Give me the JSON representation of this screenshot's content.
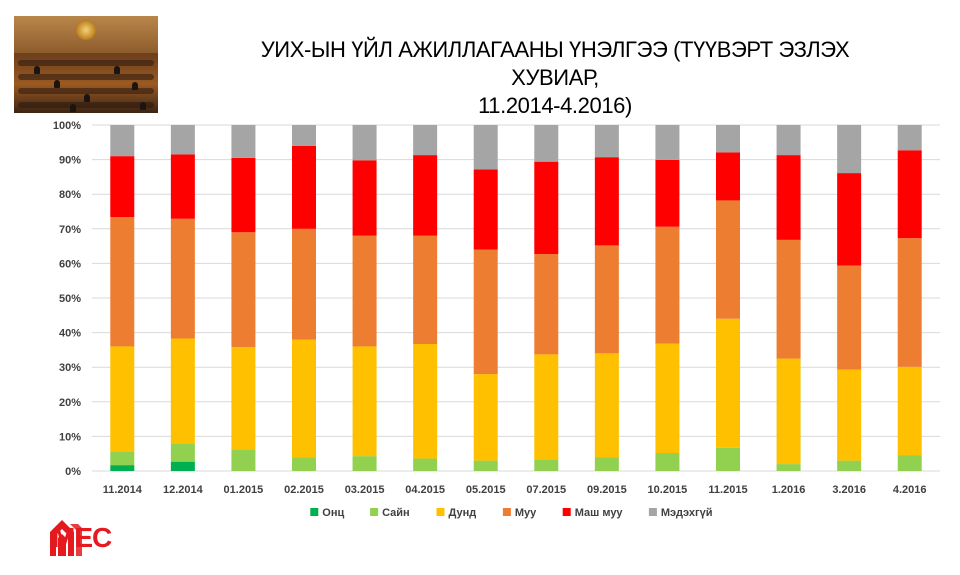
{
  "title": {
    "line1": "УИХ-ЫН ҮЙЛ АЖИЛЛАГААНЫ ҮНЭЛГЭЭ (ТҮҮВЭРТ ЭЗЛЭХ ХУВИАР,",
    "line2": "11.2014-4.2016)"
  },
  "logo": {
    "text": "MEC",
    "color": "#e51a1f"
  },
  "chart_data": {
    "type": "stacked-bar",
    "title": "",
    "xlabel": "",
    "ylabel": "",
    "ylim": [
      0,
      100
    ],
    "y_ticks": [
      "0%",
      "10%",
      "20%",
      "30%",
      "40%",
      "50%",
      "60%",
      "70%",
      "80%",
      "90%",
      "100%"
    ],
    "grid": true,
    "legend": "bottom",
    "categories": [
      "11.2014",
      "12.2014",
      "01.2015",
      "02.2015",
      "03.2015",
      "04.2015",
      "05.2015",
      "07.2015",
      "09.2015",
      "10.2015",
      "11.2015",
      "1.2016",
      "3.2016",
      "4.2016"
    ],
    "series": [
      {
        "name": "Онц",
        "color": "#00b050",
        "values": [
          1.7,
          2.7,
          0,
          0,
          0,
          0,
          0,
          0,
          0,
          0,
          0,
          0,
          0,
          0
        ]
      },
      {
        "name": "Сайн",
        "color": "#92d050",
        "values": [
          3.9,
          5.1,
          6.3,
          4.0,
          4.3,
          3.6,
          3.0,
          3.4,
          3.9,
          5.2,
          6.7,
          2.0,
          3.0,
          4.6
        ]
      },
      {
        "name": "Дунд",
        "color": "#ffc000",
        "values": [
          30.4,
          30.5,
          29.5,
          34.0,
          31.7,
          33.1,
          25.0,
          30.3,
          30.1,
          31.6,
          37.3,
          30.5,
          26.3,
          25.5
        ]
      },
      {
        "name": "Муу",
        "color": "#ed7d31",
        "values": [
          37.4,
          34.6,
          33.2,
          32.0,
          32.0,
          31.3,
          36.0,
          29.0,
          31.2,
          33.8,
          34.2,
          34.3,
          30.1,
          37.2
        ]
      },
      {
        "name": "Маш муу",
        "color": "#ff0000",
        "values": [
          17.6,
          18.6,
          21.5,
          24.0,
          21.8,
          23.3,
          23.2,
          26.7,
          25.5,
          19.3,
          13.9,
          24.5,
          26.7,
          25.4
        ]
      },
      {
        "name": "Мэдэхгүй",
        "color": "#a5a5a5",
        "values": [
          9.0,
          8.5,
          9.5,
          6.0,
          10.2,
          8.7,
          12.8,
          10.6,
          9.3,
          10.1,
          7.9,
          8.7,
          13.9,
          7.3
        ]
      }
    ]
  }
}
